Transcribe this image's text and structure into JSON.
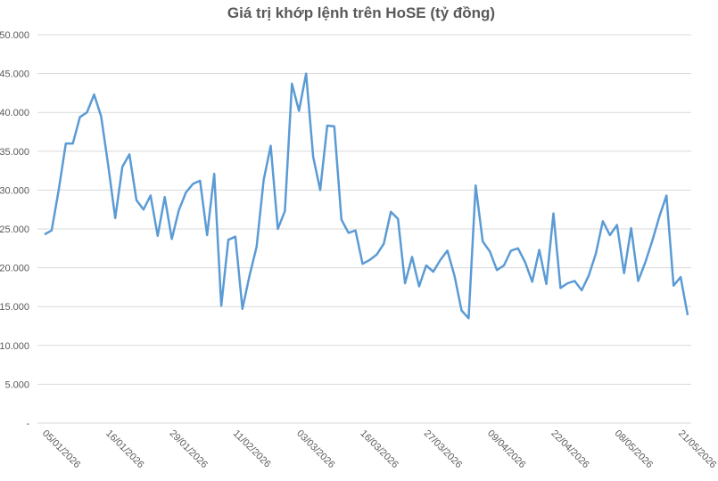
{
  "chart_data": {
    "type": "line",
    "title": "Giá trị khớp lệnh trên HoSE (tỷ đồng)",
    "categories": [
      "05/01/2026",
      null,
      null,
      null,
      null,
      null,
      null,
      null,
      null,
      "16/01/2026",
      null,
      null,
      null,
      null,
      null,
      null,
      null,
      null,
      "29/01/2026",
      null,
      null,
      null,
      null,
      null,
      null,
      null,
      null,
      "11/02/2026",
      null,
      null,
      null,
      null,
      null,
      null,
      null,
      null,
      "03/03/2026",
      null,
      null,
      null,
      null,
      null,
      null,
      null,
      null,
      "16/03/2026",
      null,
      null,
      null,
      null,
      null,
      null,
      null,
      null,
      "27/03/2026",
      null,
      null,
      null,
      null,
      null,
      null,
      null,
      null,
      "09/04/2026",
      null,
      null,
      null,
      null,
      null,
      null,
      null,
      null,
      "22/04/2026",
      null,
      null,
      null,
      null,
      null,
      null,
      null,
      null,
      "08/05/2026",
      null,
      null,
      null,
      null,
      null,
      null,
      null,
      null,
      "21/05/2026",
      null
    ],
    "series": [
      {
        "name": "Giá trị khớp lệnh",
        "color": "#5b9bd5",
        "values": [
          24300,
          24800,
          30000,
          36000,
          36000,
          39400,
          40000,
          42300,
          39500,
          33200,
          26400,
          33000,
          34600,
          28700,
          27500,
          29300,
          24100,
          29100,
          23700,
          27400,
          29700,
          30800,
          31200,
          24200,
          32100,
          15100,
          23600,
          24000,
          14700,
          19000,
          22700,
          31300,
          35700,
          25000,
          27300,
          43700,
          40200,
          45000,
          34300,
          30000,
          38300,
          38200,
          26200,
          24500,
          24800,
          20500,
          21000,
          21700,
          23100,
          27200,
          26300,
          18000,
          21400,
          17600,
          20300,
          19500,
          21000,
          22200,
          19000,
          14500,
          13500,
          30600,
          23400,
          22100,
          19700,
          20300,
          22200,
          22500,
          20700,
          18200,
          22300,
          17900,
          27000,
          17400,
          18000,
          18300,
          17100,
          19000,
          21800,
          26000,
          24200,
          25500,
          19300,
          25100,
          18300,
          20700,
          23500,
          26600,
          29300,
          17700,
          18800,
          13900
        ]
      }
    ],
    "ylim": [
      0,
      50000
    ],
    "yticks": [
      {
        "value": 0,
        "label": "-"
      },
      {
        "value": 5000,
        "label": "5.000"
      },
      {
        "value": 10000,
        "label": "10.000"
      },
      {
        "value": 15000,
        "label": "15.000"
      },
      {
        "value": 20000,
        "label": "20.000"
      },
      {
        "value": 25000,
        "label": "25.000"
      },
      {
        "value": 30000,
        "label": "30.000"
      },
      {
        "value": 35000,
        "label": "35.000"
      },
      {
        "value": 40000,
        "label": "40.000"
      },
      {
        "value": 45000,
        "label": "45.000"
      },
      {
        "value": 50000,
        "label": "50.000"
      }
    ],
    "grid": true
  }
}
